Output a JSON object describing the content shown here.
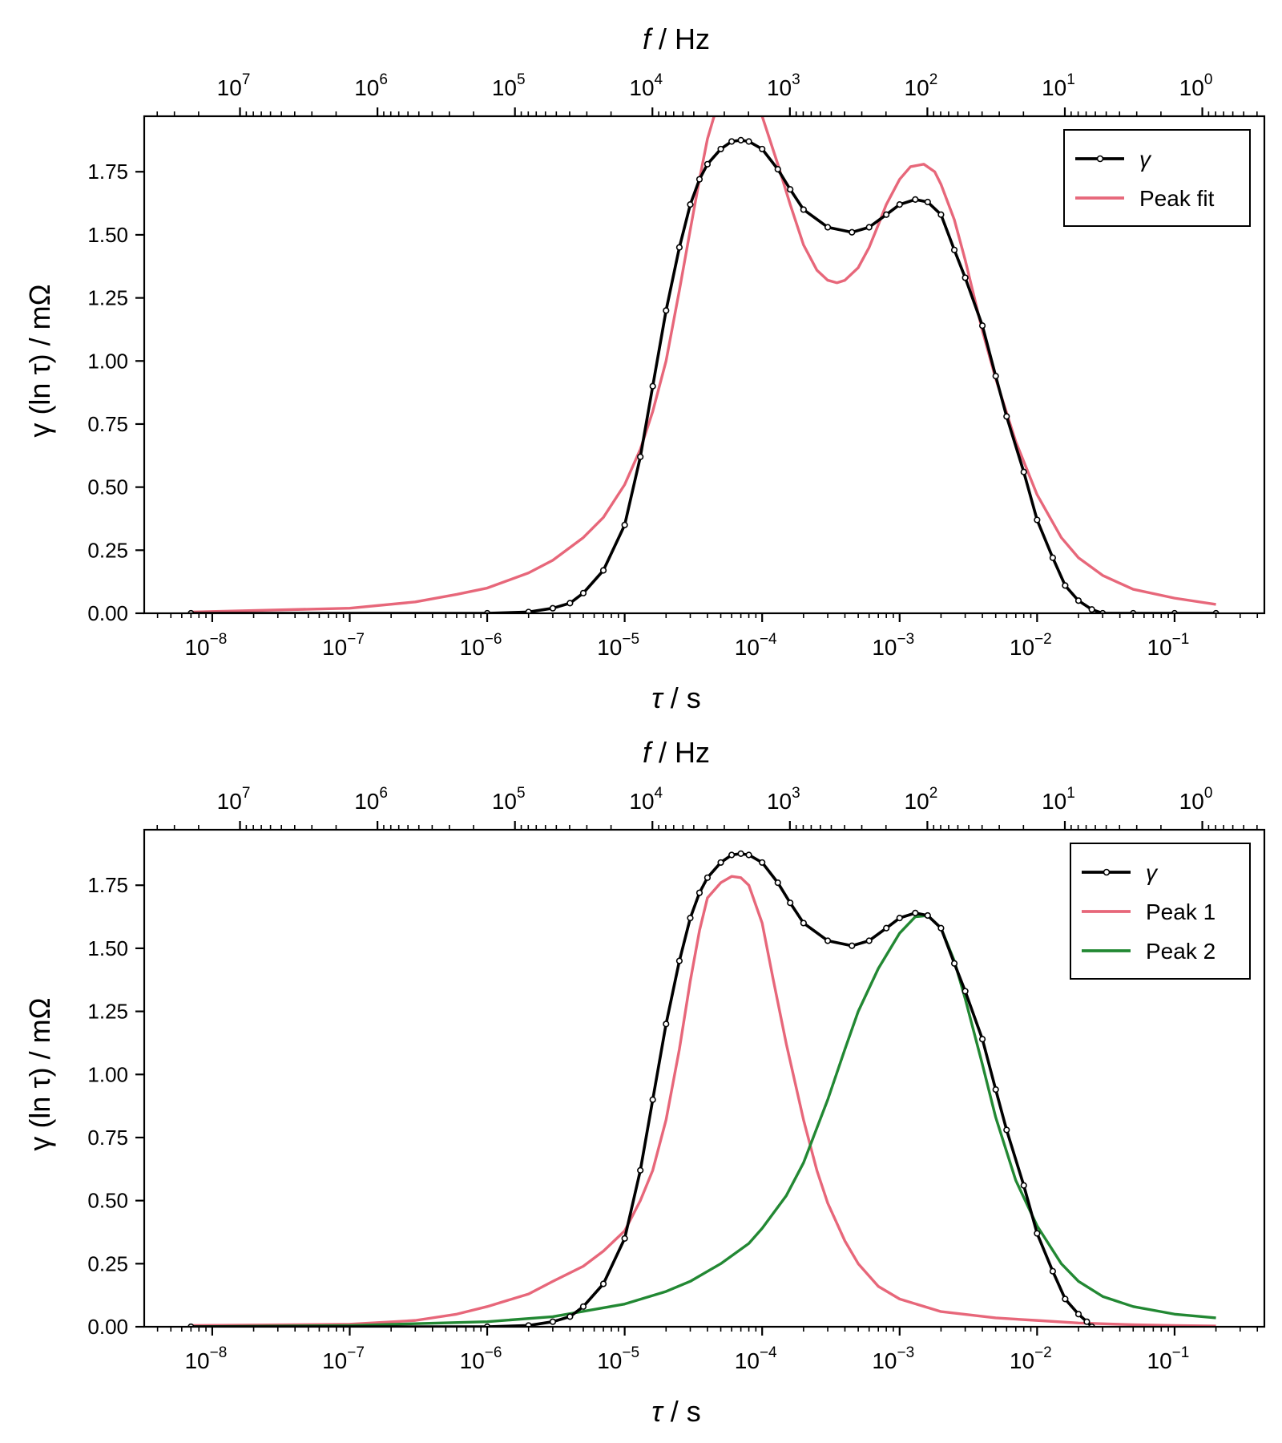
{
  "chart_data": [
    {
      "type": "line",
      "xscale": "log",
      "xlabel_sym": "τ",
      "xlabel_unit": " / s",
      "x2label_sym": "f",
      "x2label_unit": " / Hz",
      "ylabel": "γ (ln τ) / mΩ",
      "xlim": [
        3.2e-09,
        0.45
      ],
      "ylim": [
        0,
        1.97
      ],
      "yticks": [
        "0.00",
        "0.25",
        "0.50",
        "0.75",
        "1.00",
        "1.25",
        "1.50",
        "1.75"
      ],
      "xtick_exponents": [
        -8,
        -7,
        -6,
        -5,
        -4,
        -3,
        -2,
        -1
      ],
      "x2tick_exponents": [
        7,
        6,
        5,
        4,
        3,
        2,
        1,
        0
      ],
      "legend": "upper right",
      "series": [
        {
          "name": "γ",
          "style": "line-markers",
          "color": "#000000",
          "x": [
            7e-09,
            1e-06,
            2e-06,
            3e-06,
            4e-06,
            5e-06,
            7e-06,
            1e-05,
            1.3e-05,
            1.6e-05,
            2e-05,
            2.5e-05,
            3e-05,
            3.5e-05,
            4e-05,
            5e-05,
            6e-05,
            7e-05,
            8e-05,
            0.0001,
            0.00013,
            0.00016,
            0.0002,
            0.0003,
            0.00045,
            0.0006,
            0.0008,
            0.001,
            0.0013,
            0.0016,
            0.002,
            0.0025,
            0.003,
            0.004,
            0.005,
            0.006,
            0.008,
            0.01,
            0.013,
            0.016,
            0.02,
            0.025,
            0.03,
            0.05,
            0.1,
            0.2
          ],
          "y": [
            0.0,
            0.0,
            0.005,
            0.02,
            0.04,
            0.08,
            0.17,
            0.35,
            0.62,
            0.9,
            1.2,
            1.45,
            1.62,
            1.72,
            1.78,
            1.84,
            1.87,
            1.875,
            1.87,
            1.84,
            1.76,
            1.68,
            1.6,
            1.53,
            1.51,
            1.53,
            1.58,
            1.62,
            1.64,
            1.63,
            1.58,
            1.44,
            1.33,
            1.14,
            0.94,
            0.78,
            0.56,
            0.37,
            0.22,
            0.11,
            0.05,
            0.015,
            0.0,
            0.0,
            0.0,
            0.0
          ]
        },
        {
          "name": "Peak fit",
          "style": "line",
          "color": "#e7677a",
          "x": [
            7e-09,
            1e-07,
            3e-07,
            6e-07,
            1e-06,
            2e-06,
            3e-06,
            5e-06,
            7e-06,
            1e-05,
            1.3e-05,
            1.6e-05,
            2e-05,
            2.5e-05,
            3e-05,
            3.5e-05,
            4e-05,
            5e-05,
            6e-05,
            7e-05,
            8e-05,
            0.0001,
            0.00013,
            0.00016,
            0.0002,
            0.00025,
            0.0003,
            0.00035,
            0.0004,
            0.0005,
            0.0006,
            0.0007,
            0.0008,
            0.001,
            0.0012,
            0.0015,
            0.0018,
            0.002,
            0.0025,
            0.003,
            0.004,
            0.005,
            0.007,
            0.01,
            0.015,
            0.02,
            0.03,
            0.05,
            0.1,
            0.2
          ],
          "y": [
            0.005,
            0.02,
            0.045,
            0.075,
            0.1,
            0.16,
            0.21,
            0.3,
            0.38,
            0.51,
            0.65,
            0.8,
            1.0,
            1.28,
            1.52,
            1.72,
            1.88,
            2.06,
            2.1,
            2.08,
            2.05,
            1.97,
            1.78,
            1.62,
            1.46,
            1.36,
            1.32,
            1.31,
            1.32,
            1.37,
            1.45,
            1.54,
            1.62,
            1.72,
            1.77,
            1.78,
            1.75,
            1.7,
            1.56,
            1.4,
            1.12,
            0.93,
            0.68,
            0.47,
            0.3,
            0.22,
            0.15,
            0.095,
            0.06,
            0.035
          ]
        }
      ]
    },
    {
      "type": "line",
      "xscale": "log",
      "xlabel_sym": "τ",
      "xlabel_unit": " / s",
      "x2label_sym": "f",
      "x2label_unit": " / Hz",
      "ylabel": "γ (ln τ) / mΩ",
      "xlim": [
        3.2e-09,
        0.45
      ],
      "ylim": [
        0,
        1.97
      ],
      "yticks": [
        "0.00",
        "0.25",
        "0.50",
        "0.75",
        "1.00",
        "1.25",
        "1.50",
        "1.75"
      ],
      "xtick_exponents": [
        -8,
        -7,
        -6,
        -5,
        -4,
        -3,
        -2,
        -1
      ],
      "x2tick_exponents": [
        7,
        6,
        5,
        4,
        3,
        2,
        1,
        0
      ],
      "legend": "upper right",
      "series": [
        {
          "name": "γ",
          "style": "line-markers",
          "color": "#000000",
          "x": [
            7e-09,
            1e-06,
            2e-06,
            3e-06,
            4e-06,
            5e-06,
            7e-06,
            1e-05,
            1.3e-05,
            1.6e-05,
            2e-05,
            2.5e-05,
            3e-05,
            3.5e-05,
            4e-05,
            5e-05,
            6e-05,
            7e-05,
            8e-05,
            0.0001,
            0.00013,
            0.00016,
            0.0002,
            0.0003,
            0.00045,
            0.0006,
            0.0008,
            0.001,
            0.0013,
            0.0016,
            0.002,
            0.0025,
            0.003,
            0.004,
            0.005,
            0.006,
            0.008,
            0.01,
            0.013,
            0.016,
            0.02,
            0.023,
            0.025
          ],
          "y": [
            0.0,
            0.0,
            0.005,
            0.02,
            0.04,
            0.08,
            0.17,
            0.35,
            0.62,
            0.9,
            1.2,
            1.45,
            1.62,
            1.72,
            1.78,
            1.84,
            1.87,
            1.875,
            1.87,
            1.84,
            1.76,
            1.68,
            1.6,
            1.53,
            1.51,
            1.53,
            1.58,
            1.62,
            1.64,
            1.63,
            1.58,
            1.44,
            1.33,
            1.14,
            0.94,
            0.78,
            0.56,
            0.37,
            0.22,
            0.11,
            0.05,
            0.02,
            0.0
          ]
        },
        {
          "name": "Peak 1",
          "style": "line",
          "color": "#e7677a",
          "x": [
            7e-09,
            1e-07,
            3e-07,
            6e-07,
            1e-06,
            2e-06,
            3e-06,
            5e-06,
            7e-06,
            1e-05,
            1.3e-05,
            1.6e-05,
            2e-05,
            2.5e-05,
            3e-05,
            3.5e-05,
            4e-05,
            5e-05,
            6e-05,
            7e-05,
            8e-05,
            0.0001,
            0.00012,
            0.00015,
            0.0002,
            0.00025,
            0.0003,
            0.0004,
            0.0005,
            0.0007,
            0.001,
            0.002,
            0.005,
            0.01,
            0.02,
            0.05,
            0.1,
            0.2
          ],
          "y": [
            0.005,
            0.01,
            0.025,
            0.05,
            0.08,
            0.13,
            0.18,
            0.24,
            0.3,
            0.38,
            0.5,
            0.62,
            0.82,
            1.1,
            1.37,
            1.57,
            1.7,
            1.76,
            1.785,
            1.78,
            1.75,
            1.6,
            1.38,
            1.12,
            0.82,
            0.62,
            0.49,
            0.34,
            0.25,
            0.16,
            0.11,
            0.06,
            0.035,
            0.025,
            0.015,
            0.008,
            0.005,
            0.003
          ]
        },
        {
          "name": "Peak 2",
          "style": "line",
          "color": "#228833",
          "x": [
            7e-09,
            1e-07,
            1e-06,
            3e-06,
            1e-05,
            2e-05,
            3e-05,
            5e-05,
            8e-05,
            0.0001,
            0.00015,
            0.0002,
            0.0003,
            0.0004,
            0.0005,
            0.0007,
            0.001,
            0.0013,
            0.0016,
            0.002,
            0.0025,
            0.003,
            0.004,
            0.005,
            0.007,
            0.01,
            0.015,
            0.02,
            0.03,
            0.05,
            0.1,
            0.2
          ],
          "y": [
            0.0,
            0.005,
            0.02,
            0.04,
            0.09,
            0.14,
            0.18,
            0.25,
            0.33,
            0.39,
            0.52,
            0.65,
            0.9,
            1.1,
            1.25,
            1.42,
            1.56,
            1.625,
            1.63,
            1.58,
            1.45,
            1.3,
            1.04,
            0.83,
            0.58,
            0.4,
            0.25,
            0.18,
            0.12,
            0.08,
            0.05,
            0.035
          ]
        }
      ]
    }
  ]
}
